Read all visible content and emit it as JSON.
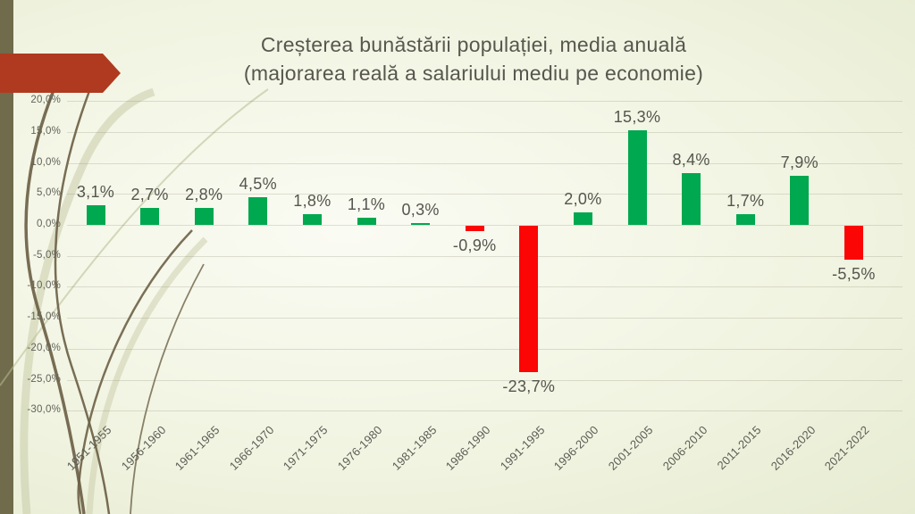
{
  "slide": {
    "title_line1": "Creșterea bunăstării populației, media anuală",
    "title_line2": "(majorarea reală a salariului mediu pe economie)"
  },
  "chart_data": {
    "type": "bar",
    "title": "Creșterea bunăstării populației, media anuală (majorarea reală a salariului mediu pe economie)",
    "categories": [
      "1951-1955",
      "1956-1960",
      "1961-1965",
      "1966-1970",
      "1971-1975",
      "1976-1980",
      "1981-1985",
      "1986-1990",
      "1991-1995",
      "1996-2000",
      "2001-2005",
      "2006-2010",
      "2011-2015",
      "2016-2020",
      "2021-2022"
    ],
    "values": [
      3.1,
      2.7,
      2.8,
      4.5,
      1.8,
      1.1,
      0.3,
      -0.9,
      -23.7,
      2.0,
      15.3,
      8.4,
      1.7,
      7.9,
      -5.5
    ],
    "value_labels": [
      "3,1%",
      "2,7%",
      "2,8%",
      "4,5%",
      "1,8%",
      "1,1%",
      "0,3%",
      "-0,9%",
      "-23,7%",
      "2,0%",
      "15,3%",
      "8,4%",
      "1,7%",
      "7,9%",
      "-5,5%"
    ],
    "y_ticks": [
      "20,0%",
      "15,0%",
      "10,0%",
      "5,0%",
      "0,0%",
      "-5,0%",
      "-10,0%",
      "-15,0%",
      "-20,0%",
      "-25,0%",
      "-30,0%"
    ],
    "y_tick_values": [
      20,
      15,
      10,
      5,
      0,
      -5,
      -10,
      -15,
      -20,
      -25,
      -30
    ],
    "ylim": [
      -30,
      20
    ],
    "grid": true,
    "legend": false,
    "xlabel": "",
    "ylabel": "",
    "positive_color": "#00a84f",
    "negative_color": "#fb0505"
  },
  "decor": {
    "band_color": "#6f6b4b",
    "arrow_color": "#af3a20",
    "curve_color": "#6d6146",
    "light_curve_color": "#c9cca8"
  }
}
